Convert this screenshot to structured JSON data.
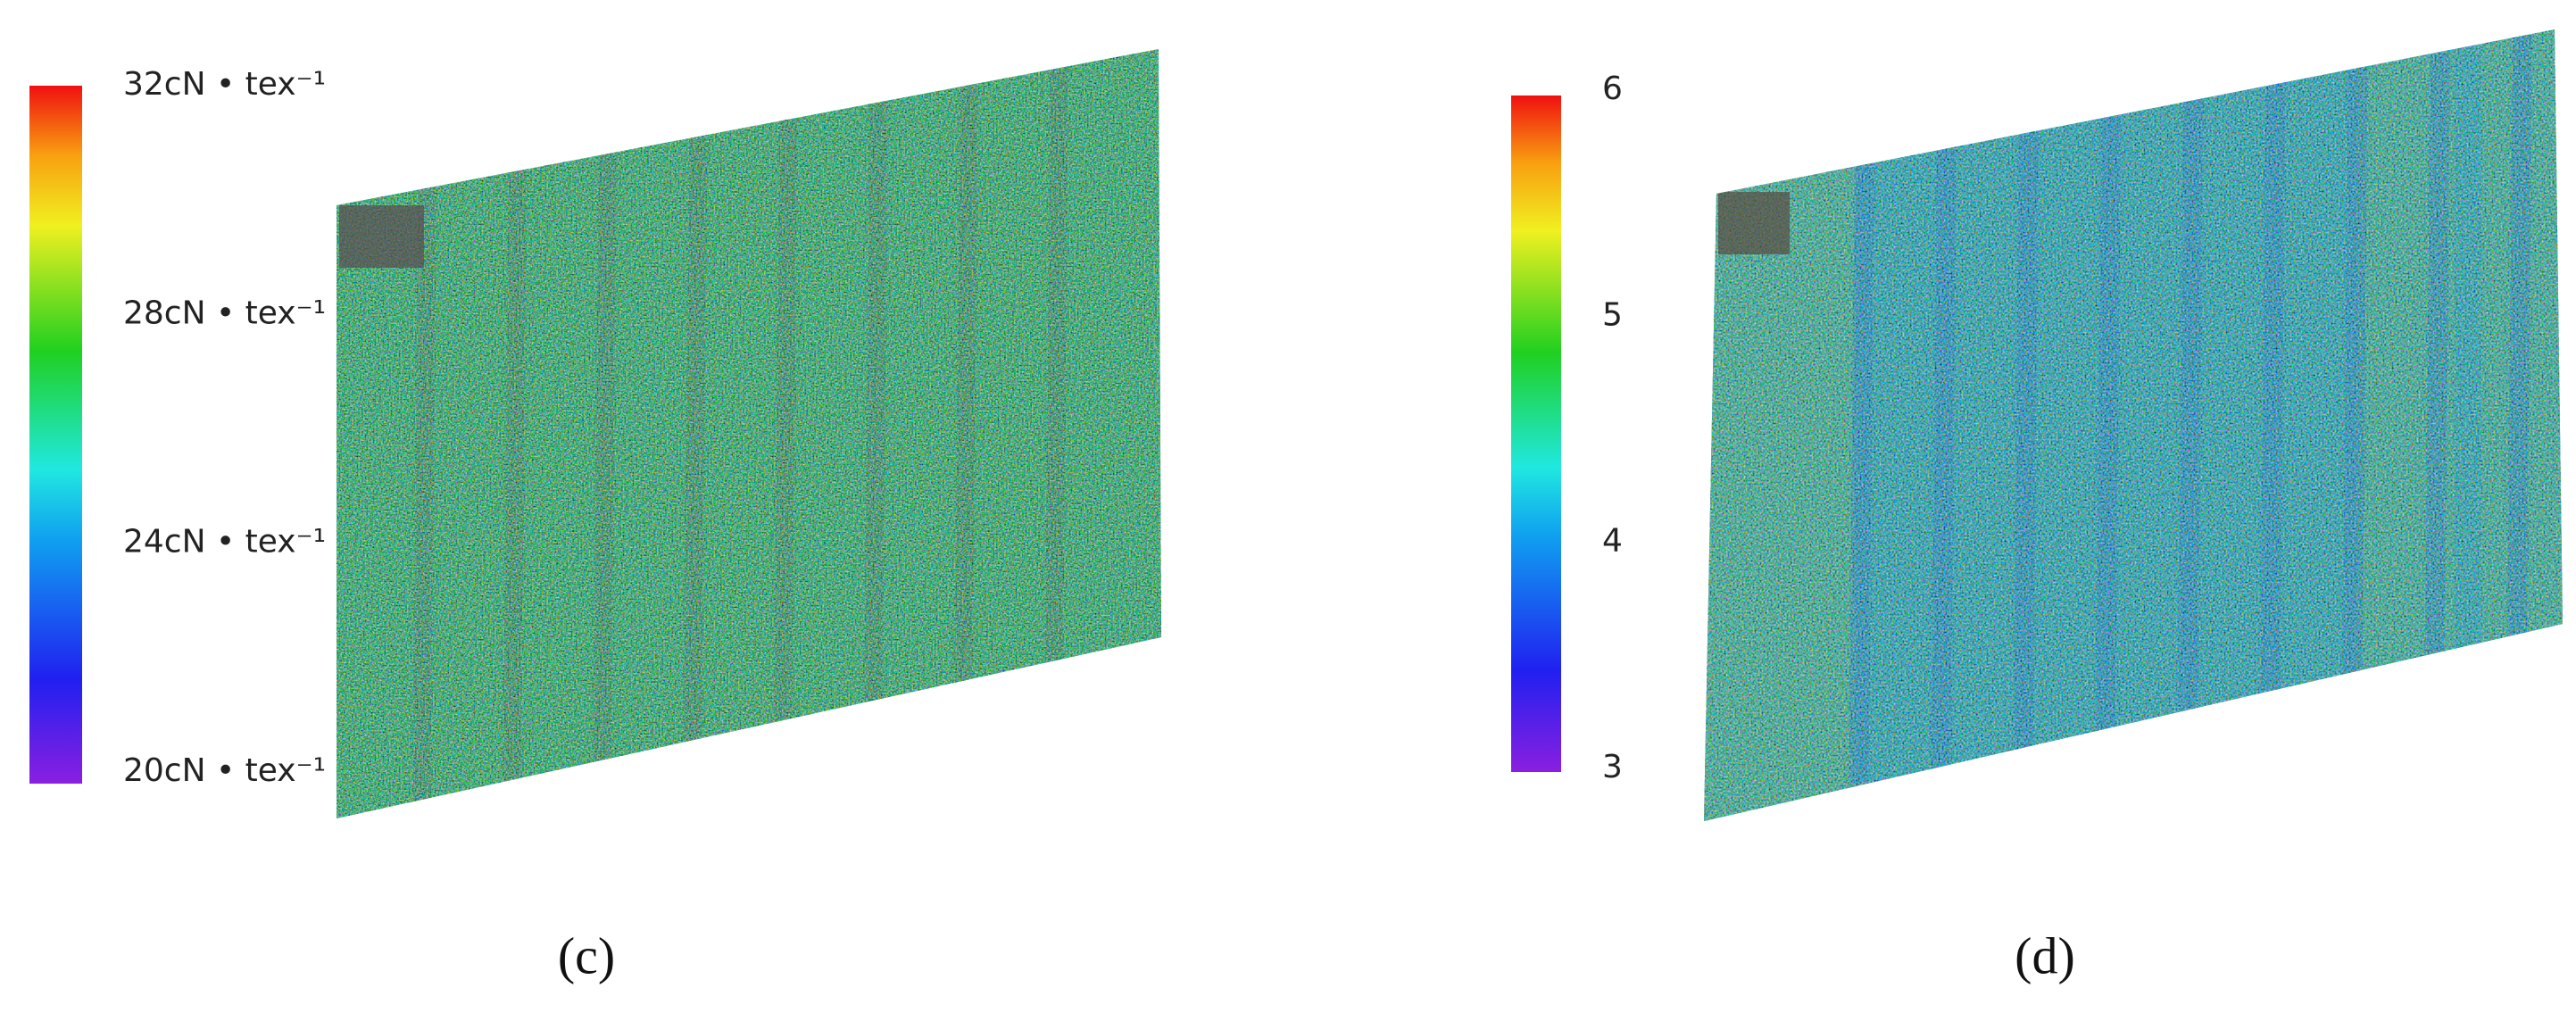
{
  "panels": [
    {
      "colorbar": {
        "labels": [
          "32cN • tex⁻¹",
          "28cN • tex⁻¹",
          "24cN • tex⁻¹",
          "20cN • tex⁻¹"
        ]
      },
      "caption": "(c)"
    },
    {
      "colorbar": {
        "labels": [
          6,
          5,
          4,
          3
        ]
      },
      "caption": "(d)"
    }
  ]
}
